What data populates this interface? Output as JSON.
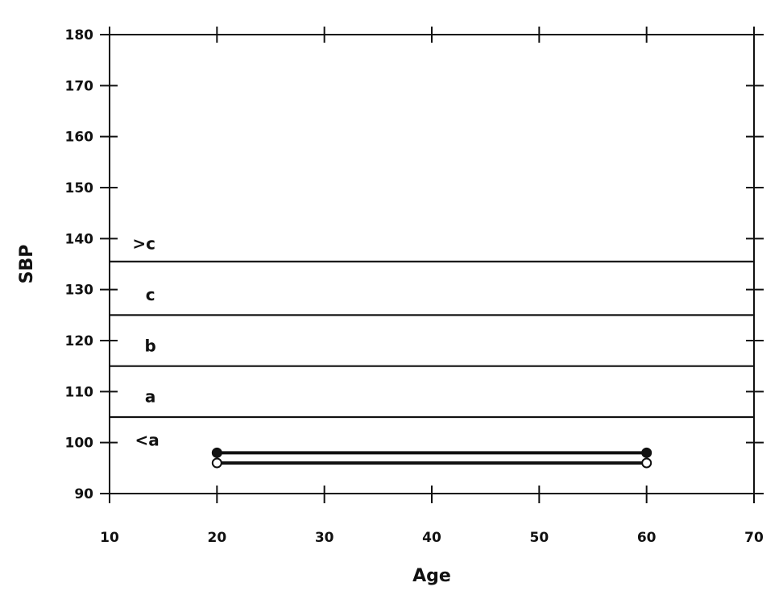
{
  "chart_data": {
    "type": "line",
    "title": "",
    "xlabel": "Age",
    "ylabel": "SBP",
    "xlim": [
      10,
      70
    ],
    "ylim": [
      90,
      180
    ],
    "xticks": [
      10,
      20,
      30,
      40,
      50,
      60,
      70
    ],
    "yticks": [
      90,
      100,
      110,
      120,
      130,
      140,
      150,
      160,
      170,
      180
    ],
    "grid": false,
    "thresholds": [
      105,
      115,
      125,
      135.5
    ],
    "band_labels": [
      {
        "text": "<a",
        "x": 13.5,
        "y": 100.5
      },
      {
        "text": "a",
        "x": 13.8,
        "y": 109
      },
      {
        "text": "b",
        "x": 13.8,
        "y": 119
      },
      {
        "text": "c",
        "x": 13.8,
        "y": 129
      },
      {
        "text": ">c",
        "x": 13.2,
        "y": 139
      }
    ],
    "series": [
      {
        "marker": "filled-circle",
        "x": [
          20,
          60
        ],
        "y": [
          98,
          98
        ]
      },
      {
        "marker": "open-circle",
        "x": [
          20,
          60
        ],
        "y": [
          96,
          96
        ]
      }
    ]
  }
}
